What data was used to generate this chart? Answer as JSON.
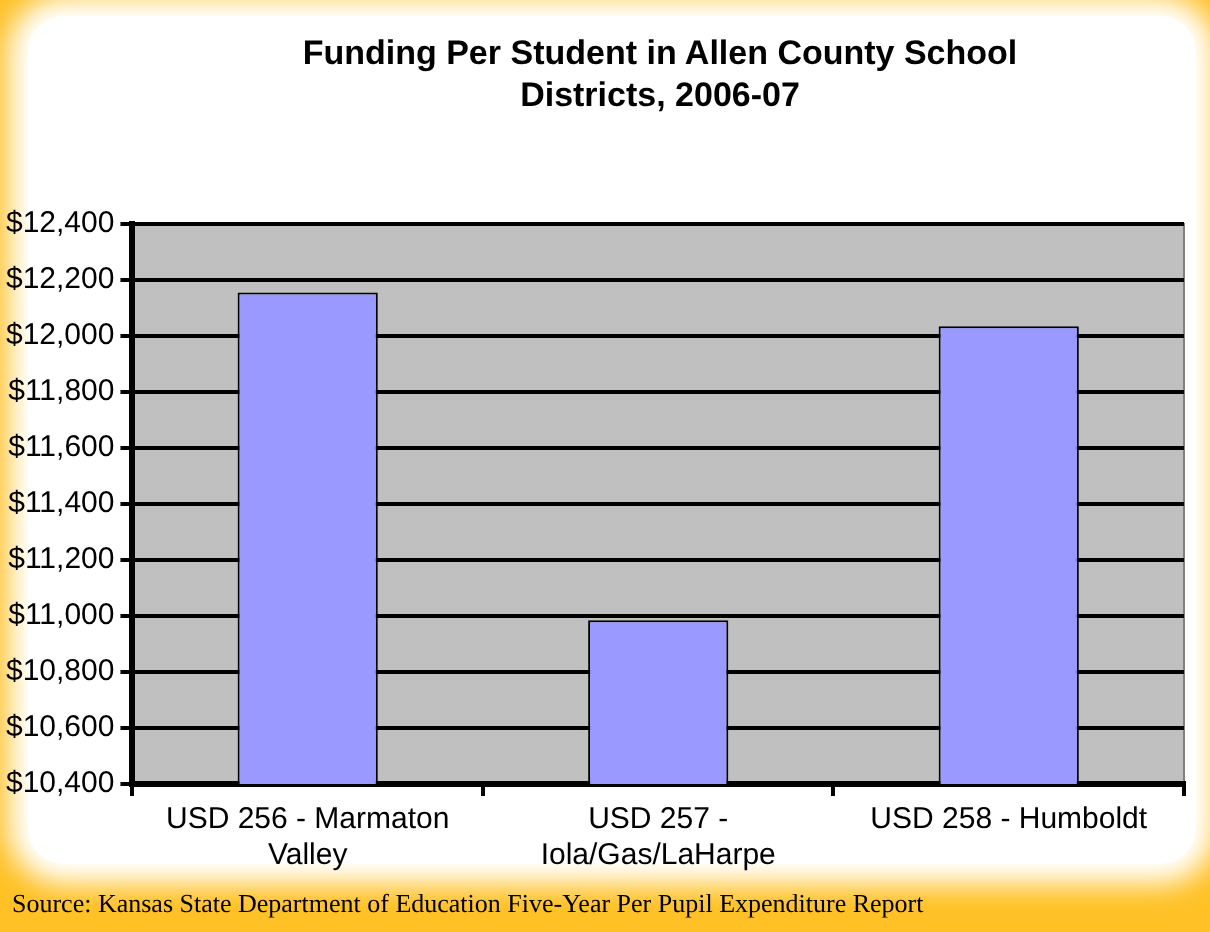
{
  "chart_data": {
    "type": "bar",
    "title": "Funding Per Student in Allen County School Districts, 2006-07",
    "categories": [
      "USD 256 - Marmaton Valley",
      "USD 257 - Iola/Gas/LaHarpe",
      "USD 258 - Humboldt"
    ],
    "values": [
      12155,
      10985,
      12035
    ],
    "color": "#9999ff",
    "ylim": [
      10400,
      12400
    ],
    "yticks": [
      {
        "value": 10400,
        "label": "$10,400"
      },
      {
        "value": 10600,
        "label": "$10,600"
      },
      {
        "value": 10800,
        "label": "$10,800"
      },
      {
        "value": 11000,
        "label": "$11,000"
      },
      {
        "value": 11200,
        "label": "$11,200"
      },
      {
        "value": 11400,
        "label": "$11,400"
      },
      {
        "value": 11600,
        "label": "$11,600"
      },
      {
        "value": 11800,
        "label": "$11,800"
      },
      {
        "value": 12000,
        "label": "$12,000"
      },
      {
        "value": 12200,
        "label": "$12,200"
      },
      {
        "value": 12400,
        "label": "$12,400"
      }
    ],
    "grid": "y",
    "legend": false,
    "annotations": [
      "Source: Kansas State Department of Education Five-Year Per Pupil Expenditure Report"
    ]
  }
}
